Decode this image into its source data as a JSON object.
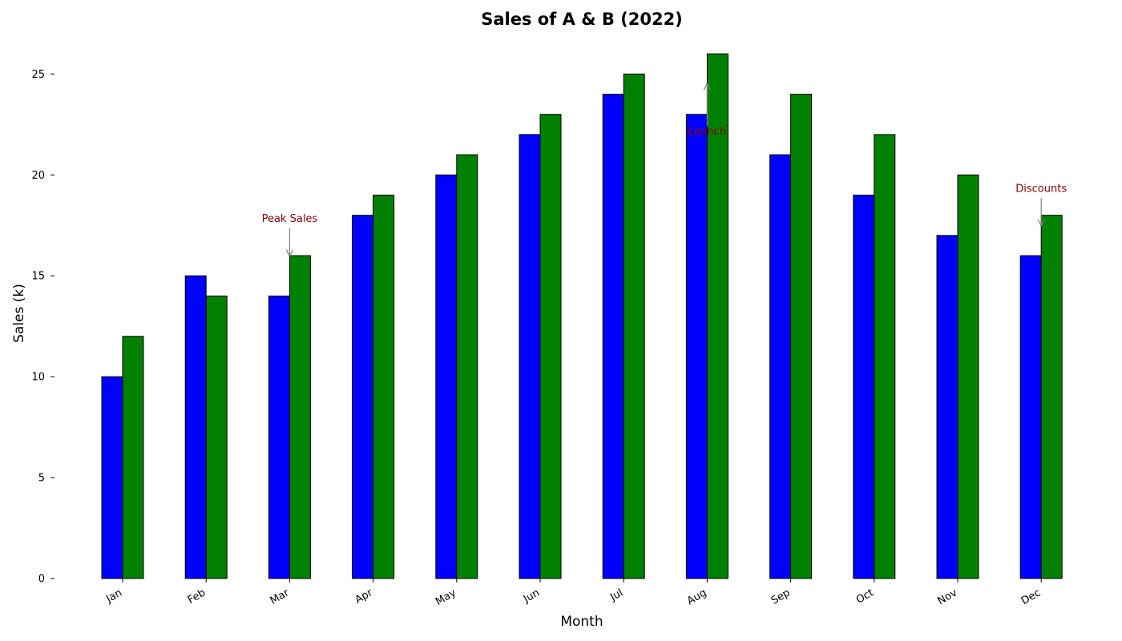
{
  "chart_data": {
    "type": "bar",
    "title": "Sales of A & B (2022)",
    "xlabel": "Month",
    "ylabel": "Sales (k)",
    "categories": [
      "Jan",
      "Feb",
      "Mar",
      "Apr",
      "May",
      "Jun",
      "Jul",
      "Aug",
      "Sep",
      "Oct",
      "Nov",
      "Dec"
    ],
    "series": [
      {
        "values": [
          10,
          15,
          14,
          18,
          20,
          22,
          24,
          23,
          21,
          19,
          17,
          16
        ],
        "color": "#0000ff"
      },
      {
        "values": [
          12,
          14,
          16,
          19,
          21,
          23,
          25,
          26,
          24,
          22,
          20,
          18
        ],
        "color": "#008000"
      }
    ],
    "ylim": [
      0,
      27
    ],
    "yticks": [
      0,
      5,
      10,
      15,
      20,
      25
    ],
    "grid": false,
    "annotations": [
      {
        "text": "Peak Sales",
        "category": "Mar",
        "value": 16,
        "arrow": "down"
      },
      {
        "text": "Launch",
        "category": "Aug",
        "value": 24.5,
        "arrow": "up"
      },
      {
        "text": "Discounts",
        "category": "Dec",
        "value": 17.5,
        "arrow": "down"
      }
    ]
  }
}
